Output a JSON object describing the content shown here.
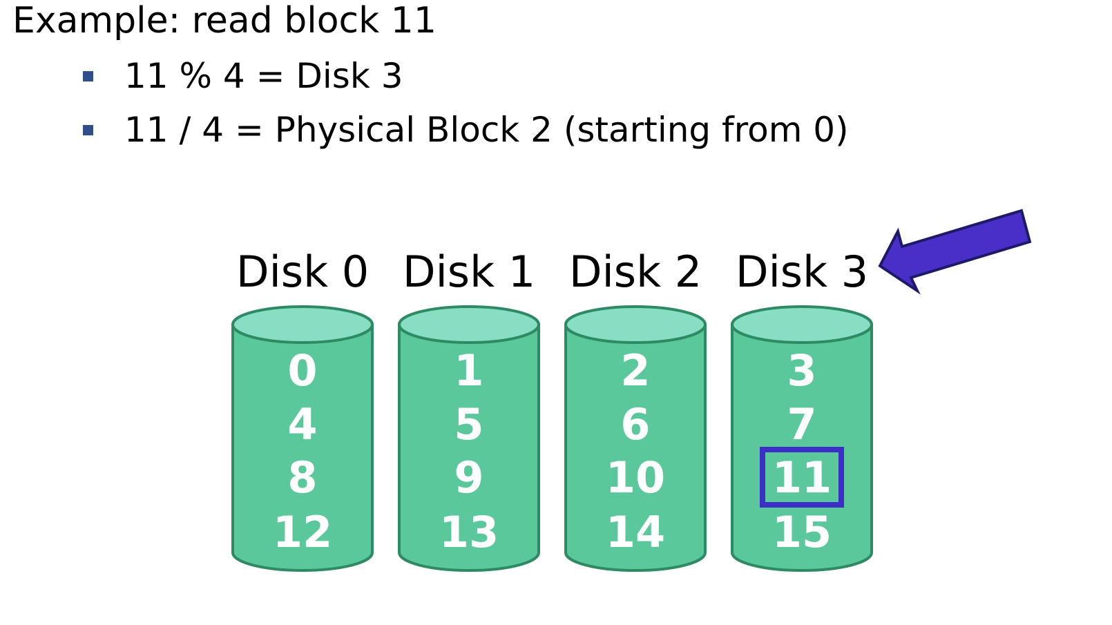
{
  "heading": "Example: read block 11",
  "bullets": [
    "11 % 4 = Disk 3",
    "11 / 4 = Physical Block 2 (starting from 0)"
  ],
  "disks": [
    {
      "label": "Disk 0",
      "blocks": [
        "0",
        "4",
        "8",
        "12"
      ]
    },
    {
      "label": "Disk 1",
      "blocks": [
        "1",
        "5",
        "9",
        "13"
      ]
    },
    {
      "label": "Disk 2",
      "blocks": [
        "2",
        "6",
        "10",
        "14"
      ]
    },
    {
      "label": "Disk 3",
      "blocks": [
        "3",
        "7",
        "11",
        "15"
      ]
    }
  ],
  "highlight": {
    "disk_index": 3,
    "block_index": 2
  },
  "arrow_target_disk_index": 3,
  "colors": {
    "disk_body": "#5bc89c",
    "disk_top": "#88dec3",
    "disk_outline": "#2e8a62",
    "highlight": "#3c2fc8",
    "arrow_fill": "#4a2ec8",
    "arrow_outline": "#1e1a6a",
    "bullet": "#2f4f8a"
  }
}
